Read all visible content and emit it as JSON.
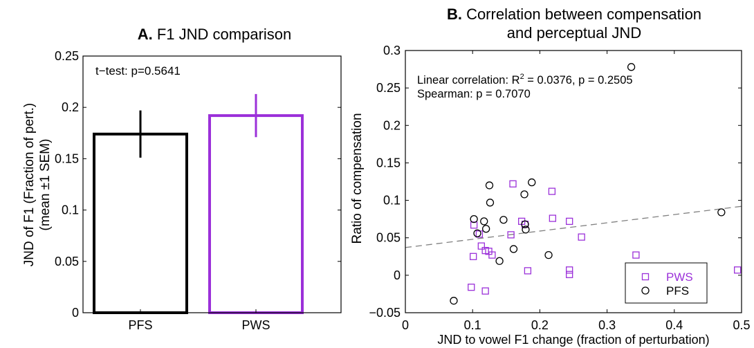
{
  "colors": {
    "pfs": "#000000",
    "pws": "#9b30d9",
    "fit_line": "#808080"
  },
  "chart_data": [
    {
      "type": "bar",
      "panel_letter": "A.",
      "title": "F1 JND comparison",
      "ylabel_line1": "JND of F1 (Fraction of pert.)",
      "ylabel_line2": "(mean  ±1 SEM)",
      "categories": [
        "PFS",
        "PWS"
      ],
      "values": [
        0.174,
        0.192
      ],
      "errors": [
        0.023,
        0.021
      ],
      "ylim": [
        0,
        0.25
      ],
      "yticks": [
        0,
        0.05,
        0.1,
        0.15,
        0.2,
        0.25
      ],
      "ytick_labels": [
        "0",
        "0.05",
        "0.1",
        "0.15",
        "0.2",
        "0.25"
      ],
      "annotation": "t−test: p=0.5641"
    },
    {
      "type": "scatter",
      "panel_letter": "B.",
      "title_line1": "Correlation between compensation",
      "title_line2": "and perceptual JND",
      "xlabel": "JND to vowel F1 change (fraction of perturbation)",
      "ylabel": "Ratio of compensation",
      "xlim": [
        0,
        0.5
      ],
      "ylim": [
        -0.05,
        0.3
      ],
      "xticks": [
        0,
        0.1,
        0.2,
        0.3,
        0.4,
        0.5
      ],
      "xtick_labels": [
        "0",
        "0.1",
        "0.2",
        "0.3",
        "0.4",
        "0.5"
      ],
      "yticks": [
        -0.05,
        0,
        0.05,
        0.1,
        0.15,
        0.2,
        0.25,
        0.3
      ],
      "ytick_labels": [
        "−0.05",
        "0",
        "0.05",
        "0.1",
        "0.15",
        "0.2",
        "0.25",
        "0.3"
      ],
      "annotation_line1_prefix": "Linear correlation: R",
      "annotation_line1_sup": "2",
      "annotation_line1_suffix": " = 0.0376, p = 0.2505",
      "annotation_line2": "Spearman: p = 0.7070",
      "fit_line": {
        "x": [
          0,
          0.5
        ],
        "y": [
          0.037,
          0.092
        ]
      },
      "series": [
        {
          "name": "PWS",
          "marker": "square",
          "points": [
            [
              0.098,
              -0.016
            ],
            [
              0.119,
              -0.021
            ],
            [
              0.101,
              0.025
            ],
            [
              0.102,
              0.067
            ],
            [
              0.11,
              0.055
            ],
            [
              0.113,
              0.039
            ],
            [
              0.119,
              0.033
            ],
            [
              0.124,
              0.032
            ],
            [
              0.129,
              0.027
            ],
            [
              0.157,
              0.054
            ],
            [
              0.16,
              0.122
            ],
            [
              0.173,
              0.072
            ],
            [
              0.178,
              0.068
            ],
            [
              0.182,
              0.006
            ],
            [
              0.218,
              0.112
            ],
            [
              0.219,
              0.076
            ],
            [
              0.244,
              0.072
            ],
            [
              0.244,
              0.007
            ],
            [
              0.244,
              0.001
            ],
            [
              0.262,
              0.051
            ],
            [
              0.343,
              0.027
            ],
            [
              0.494,
              0.007
            ]
          ]
        },
        {
          "name": "PFS",
          "marker": "circle",
          "points": [
            [
              0.072,
              -0.034
            ],
            [
              0.102,
              0.075
            ],
            [
              0.107,
              0.056
            ],
            [
              0.117,
              0.072
            ],
            [
              0.12,
              0.062
            ],
            [
              0.125,
              0.12
            ],
            [
              0.126,
              0.097
            ],
            [
              0.14,
              0.019
            ],
            [
              0.146,
              0.074
            ],
            [
              0.161,
              0.035
            ],
            [
              0.177,
              0.108
            ],
            [
              0.178,
              0.068
            ],
            [
              0.179,
              0.061
            ],
            [
              0.188,
              0.124
            ],
            [
              0.213,
              0.027
            ],
            [
              0.336,
              0.278
            ],
            [
              0.47,
              0.084
            ]
          ]
        }
      ],
      "legend": [
        {
          "name": "PWS"
        },
        {
          "name": "PFS"
        }
      ]
    }
  ]
}
